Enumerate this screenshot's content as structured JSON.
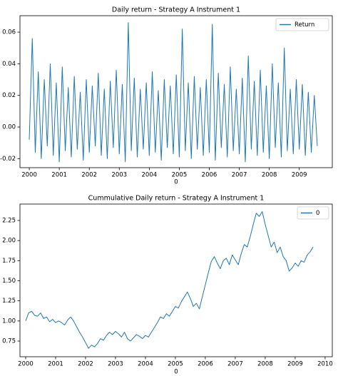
{
  "chart_data": [
    {
      "type": "line",
      "title": "Daily return - Strategy A Instrument 1",
      "xlabel": "0",
      "x": [
        2000.0,
        2000.1,
        2000.2,
        2000.3,
        2000.4,
        2000.5,
        2000.6,
        2000.7,
        2000.8,
        2000.9,
        2001.0,
        2001.1,
        2001.2,
        2001.3,
        2001.4,
        2001.5,
        2001.6,
        2001.7,
        2001.8,
        2001.9,
        2002.0,
        2002.1,
        2002.2,
        2002.3,
        2002.4,
        2002.5,
        2002.6,
        2002.7,
        2002.8,
        2002.9,
        2003.0,
        2003.1,
        2003.2,
        2003.3,
        2003.4,
        2003.5,
        2003.6,
        2003.7,
        2003.8,
        2003.9,
        2004.0,
        2004.1,
        2004.2,
        2004.3,
        2004.4,
        2004.5,
        2004.6,
        2004.7,
        2004.8,
        2004.9,
        2005.0,
        2005.1,
        2005.2,
        2005.3,
        2005.4,
        2005.5,
        2005.6,
        2005.7,
        2005.8,
        2005.9,
        2006.0,
        2006.1,
        2006.2,
        2006.3,
        2006.4,
        2006.5,
        2006.6,
        2006.7,
        2006.8,
        2006.9,
        2007.0,
        2007.1,
        2007.2,
        2007.3,
        2007.4,
        2007.5,
        2007.6,
        2007.7,
        2007.8,
        2007.9,
        2008.0,
        2008.1,
        2008.2,
        2008.3,
        2008.4,
        2008.5,
        2008.6,
        2008.7,
        2008.8,
        2008.9,
        2009.0,
        2009.1,
        2009.2,
        2009.3,
        2009.4,
        2009.5,
        2009.6
      ],
      "series": [
        {
          "name": "Return",
          "color": "#1f77b4",
          "values": [
            -0.008,
            0.056,
            -0.016,
            0.035,
            -0.02,
            0.03,
            -0.012,
            0.04,
            -0.018,
            0.028,
            -0.022,
            0.038,
            -0.015,
            0.025,
            -0.019,
            0.032,
            -0.014,
            0.022,
            -0.021,
            0.03,
            -0.016,
            0.026,
            -0.012,
            0.034,
            -0.018,
            0.024,
            -0.02,
            0.029,
            -0.013,
            0.036,
            -0.017,
            0.027,
            -0.022,
            0.066,
            -0.015,
            0.031,
            -0.019,
            0.024,
            -0.014,
            0.028,
            -0.018,
            0.035,
            -0.016,
            0.023,
            -0.021,
            0.03,
            -0.013,
            0.026,
            -0.017,
            0.033,
            -0.019,
            0.062,
            -0.015,
            0.028,
            -0.02,
            0.032,
            -0.014,
            0.025,
            -0.018,
            0.03,
            -0.016,
            0.065,
            -0.021,
            0.034,
            -0.013,
            0.027,
            -0.019,
            0.038,
            -0.015,
            0.024,
            -0.017,
            0.031,
            -0.022,
            0.045,
            -0.014,
            0.029,
            -0.018,
            0.036,
            -0.016,
            0.026,
            -0.02,
            0.04,
            -0.013,
            0.028,
            -0.019,
            0.05,
            -0.015,
            0.024,
            -0.017,
            0.03,
            -0.014,
            0.027,
            -0.018,
            0.022,
            -0.016,
            0.02,
            -0.012
          ]
        }
      ],
      "xlim": [
        1999.69,
        2010.1
      ],
      "xticks": [
        2000,
        2001,
        2002,
        2003,
        2004,
        2005,
        2006,
        2007,
        2008,
        2009
      ],
      "ylim": [
        -0.0257,
        0.0704
      ],
      "yticks": [
        -0.02,
        {
          "value": 0,
          "label": "0.00"
        },
        0.02,
        0.04,
        0.06
      ],
      "legend": "upper right"
    },
    {
      "type": "line",
      "title": "Cummulative Daily return - Strategy A Instrument 1",
      "xlabel": "0",
      "x": [
        2000.0,
        2000.1,
        2000.2,
        2000.3,
        2000.4,
        2000.5,
        2000.6,
        2000.7,
        2000.8,
        2000.9,
        2001.0,
        2001.1,
        2001.2,
        2001.3,
        2001.4,
        2001.5,
        2001.6,
        2001.7,
        2001.8,
        2001.9,
        2002.0,
        2002.1,
        2002.2,
        2002.3,
        2002.4,
        2002.5,
        2002.6,
        2002.7,
        2002.8,
        2002.9,
        2003.0,
        2003.1,
        2003.2,
        2003.3,
        2003.4,
        2003.5,
        2003.6,
        2003.7,
        2003.8,
        2003.9,
        2004.0,
        2004.1,
        2004.2,
        2004.3,
        2004.4,
        2004.5,
        2004.6,
        2004.7,
        2004.8,
        2004.9,
        2005.0,
        2005.1,
        2005.2,
        2005.3,
        2005.4,
        2005.5,
        2005.6,
        2005.7,
        2005.8,
        2005.9,
        2006.0,
        2006.1,
        2006.2,
        2006.3,
        2006.4,
        2006.5,
        2006.6,
        2006.7,
        2006.8,
        2006.9,
        2007.0,
        2007.1,
        2007.2,
        2007.3,
        2007.4,
        2007.5,
        2007.6,
        2007.7,
        2007.8,
        2007.9,
        2008.0,
        2008.1,
        2008.2,
        2008.3,
        2008.4,
        2008.5,
        2008.6,
        2008.7,
        2008.8,
        2008.9,
        2009.0,
        2009.1,
        2009.2,
        2009.3,
        2009.4,
        2009.5,
        2009.6
      ],
      "series": [
        {
          "name": "0",
          "color": "#1f77b4",
          "values": [
            1.0,
            1.1,
            1.12,
            1.07,
            1.06,
            1.1,
            1.03,
            1.05,
            0.99,
            1.02,
            0.98,
            1.0,
            0.98,
            0.95,
            1.01,
            1.05,
            1.0,
            0.93,
            0.86,
            0.8,
            0.73,
            0.66,
            0.7,
            0.68,
            0.72,
            0.78,
            0.76,
            0.82,
            0.86,
            0.83,
            0.87,
            0.84,
            0.8,
            0.86,
            0.78,
            0.75,
            0.79,
            0.83,
            0.81,
            0.78,
            0.82,
            0.8,
            0.86,
            0.92,
            0.98,
            1.05,
            1.03,
            1.09,
            1.06,
            1.12,
            1.18,
            1.16,
            1.24,
            1.3,
            1.36,
            1.28,
            1.18,
            1.22,
            1.15,
            1.3,
            1.45,
            1.6,
            1.74,
            1.8,
            1.72,
            1.65,
            1.75,
            1.78,
            1.7,
            1.82,
            1.76,
            1.7,
            1.84,
            1.95,
            1.92,
            2.05,
            2.2,
            2.34,
            2.3,
            2.36,
            2.2,
            2.06,
            1.92,
            1.98,
            1.85,
            1.92,
            1.8,
            1.75,
            1.62,
            1.66,
            1.72,
            1.68,
            1.75,
            1.73,
            1.82,
            1.86,
            1.92
          ]
        }
      ],
      "xlim": [
        1999.81,
        2010.24
      ],
      "xticks": [
        2000,
        2001,
        2002,
        2003,
        2004,
        2005,
        2006,
        2007,
        2008,
        2009,
        2010
      ],
      "ylim": [
        0.555,
        2.454
      ],
      "yticks": [
        0.75,
        {
          "value": 1,
          "label": "1.00"
        },
        1.25,
        {
          "value": 1.5,
          "label": "1.50"
        },
        1.75,
        {
          "value": 2,
          "label": "2.00"
        },
        2.25
      ],
      "legend": "upper right"
    }
  ]
}
